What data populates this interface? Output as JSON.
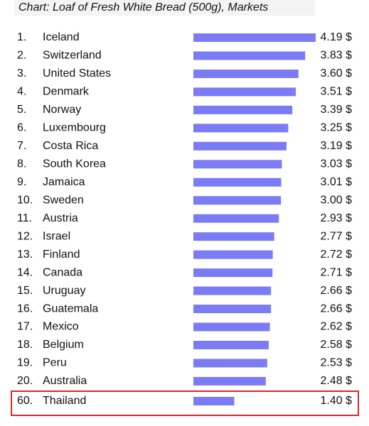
{
  "chart_data": {
    "type": "bar",
    "orientation": "horizontal",
    "title": "Chart: Loaf of Fresh White Bread (500g), Markets",
    "color": "#7b7bf6",
    "ranks": [
      "1.",
      "2.",
      "3.",
      "4.",
      "5.",
      "6.",
      "7.",
      "8.",
      "9.",
      "10.",
      "11.",
      "12.",
      "13.",
      "14.",
      "15.",
      "16.",
      "17.",
      "18.",
      "19.",
      "20."
    ],
    "categories": [
      "Iceland",
      "Switzerland",
      "United States",
      "Denmark",
      "Norway",
      "Luxembourg",
      "Costa Rica",
      "South Korea",
      "Jamaica",
      "Sweden",
      "Austria",
      "Israel",
      "Finland",
      "Canada",
      "Uruguay",
      "Guatemala",
      "Mexico",
      "Belgium",
      "Peru",
      "Australia"
    ],
    "values": [
      4.19,
      3.83,
      3.6,
      3.51,
      3.39,
      3.25,
      3.19,
      3.03,
      3.01,
      3.0,
      2.93,
      2.77,
      2.72,
      2.71,
      2.66,
      2.66,
      2.62,
      2.58,
      2.53,
      2.48
    ],
    "value_labels": [
      "4.19 $",
      "3.83 $",
      "3.60 $",
      "3.51 $",
      "3.39 $",
      "3.25 $",
      "3.19 $",
      "3.03 $",
      "3.01 $",
      "3.00 $",
      "2.93 $",
      "2.77 $",
      "2.72 $",
      "2.71 $",
      "2.66 $",
      "2.66 $",
      "2.62 $",
      "2.58 $",
      "2.53 $",
      "2.48 $"
    ],
    "highlight": {
      "rank": "60.",
      "category": "Thailand",
      "value": 1.4,
      "value_label": "1.40 $",
      "border_color": "#d9262e"
    }
  }
}
